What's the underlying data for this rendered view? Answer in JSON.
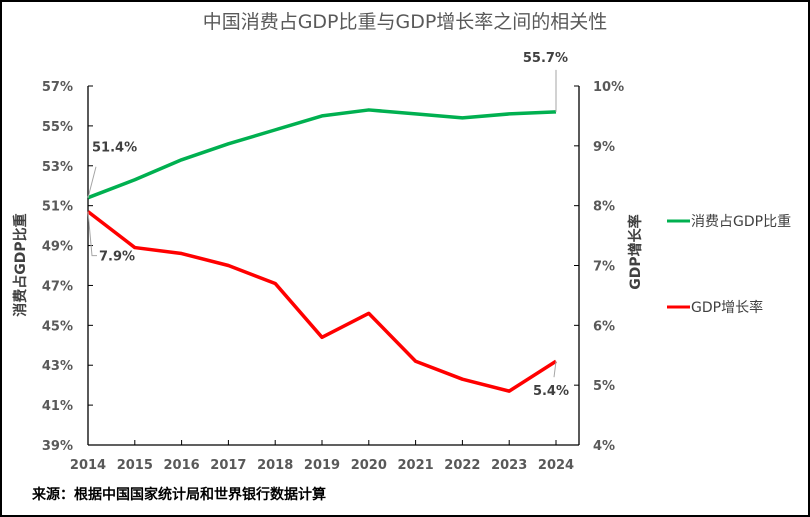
{
  "chart_data": {
    "type": "line",
    "title": "中国消费占GDP比重与GDP增长率之间的相关性",
    "categories": [
      "2014",
      "2015",
      "2016",
      "2017",
      "2018",
      "2019",
      "2020",
      "2021",
      "2022",
      "2023",
      "2024"
    ],
    "series": [
      {
        "name": "消费占GDP比重",
        "axis": "left",
        "color": "#00B050",
        "values": [
          51.4,
          52.3,
          53.3,
          54.1,
          54.8,
          55.5,
          55.8,
          55.6,
          55.4,
          55.6,
          55.7
        ]
      },
      {
        "name": "GDP增长率",
        "axis": "right",
        "color": "#FF0000",
        "values": [
          7.9,
          7.3,
          7.2,
          7.0,
          6.7,
          5.8,
          6.2,
          5.4,
          5.1,
          4.9,
          5.4
        ]
      }
    ],
    "ylabel_left": "消费占GDP比重",
    "ylabel_right": "GDP增长率",
    "ylim_left": [
      39,
      57
    ],
    "ylim_right": [
      4,
      10
    ],
    "yticks_left": [
      "39%",
      "41%",
      "43%",
      "45%",
      "47%",
      "49%",
      "51%",
      "53%",
      "55%",
      "57%"
    ],
    "yticks_right": [
      "4%",
      "5%",
      "6%",
      "7%",
      "8%",
      "9%",
      "10%"
    ],
    "data_labels": [
      {
        "series": 0,
        "index": 0,
        "text": "51.4%"
      },
      {
        "series": 0,
        "index": 10,
        "text": "55.7%"
      },
      {
        "series": 1,
        "index": 0,
        "text": "7.9%"
      },
      {
        "series": 1,
        "index": 10,
        "text": "5.4%"
      }
    ],
    "legend": "right",
    "grid": false,
    "source_note": "来源：根据中国国家统计局和世界银行数据计算"
  }
}
